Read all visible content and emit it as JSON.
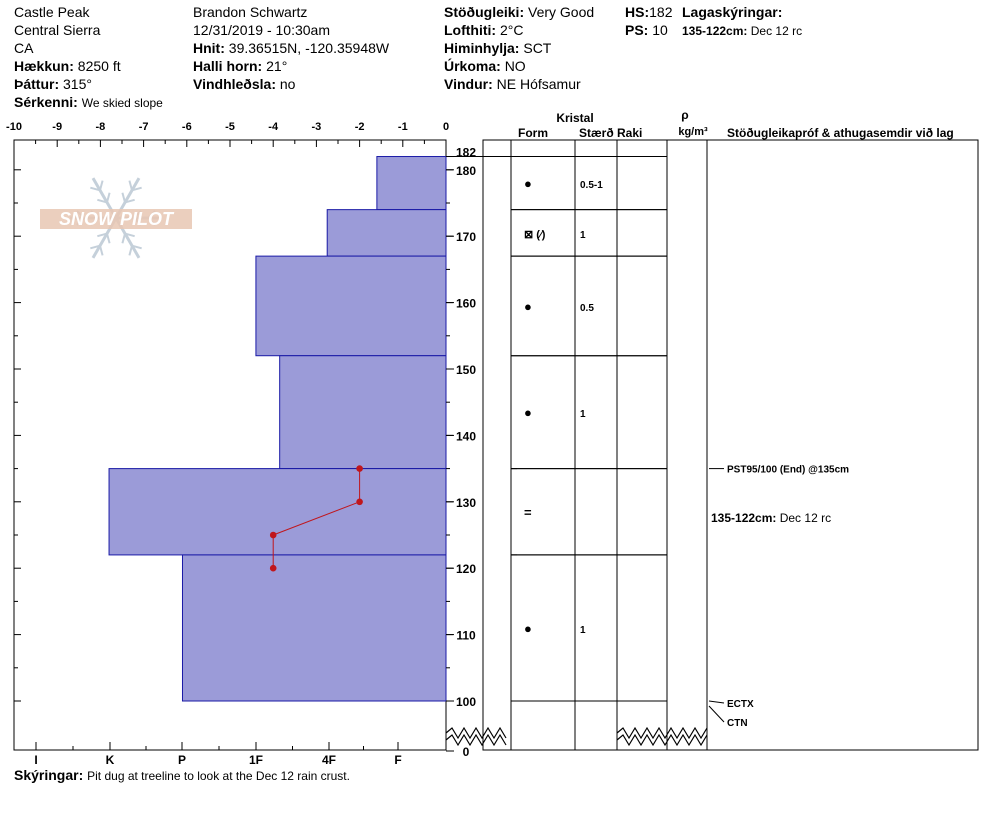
{
  "header": {
    "location": "Castle Peak",
    "range": "Central Sierra",
    "state": "CA",
    "elevation_label": "Hækkun:",
    "elevation_value": "8250 ft",
    "aspect_label": "Þáttur:",
    "aspect_value": "315°",
    "notes_label": "Sérkenni:",
    "notes_value": "We skied slope",
    "observer": "Brandon Schwartz",
    "datetime": "12/31/2019 - 10:30am",
    "coords_label": "Hnit:",
    "coords_value": "39.36515N, -120.35948W",
    "slope_label": "Halli horn:",
    "slope_value": "21°",
    "wind_loading_label": "Vindhleðsla:",
    "wind_loading_value": "no",
    "stability_label": "Stöðugleiki:",
    "stability_value": "Very Good",
    "air_temp_label": "Lofthiti:",
    "air_temp_value": "2°C",
    "sky_label": "Himinhylja:",
    "sky_value": "SCT",
    "precip_label": "Úrkoma:",
    "precip_value": "NO",
    "wind_label": "Vindur:",
    "wind_value": "NE Hófsamur",
    "hs_label": "HS:",
    "hs_value": "182",
    "ps_label": "PS:",
    "ps_value": "10",
    "layers_label": "Lagaskýringar:",
    "layer_note_range": "135-122cm:",
    "layer_note_text": "Dec 12 rc"
  },
  "footer": {
    "label": "Skýringar:",
    "text": "Pit dug at treeline to look at the Dec 12 rain crust."
  },
  "logo": {
    "text": "SNOW PILOT",
    "icon": "snowflake-icon"
  },
  "chart_data": {
    "type": "bar",
    "x_top_ticks": [
      "-10",
      "-9",
      "-8",
      "-7",
      "-6",
      "-5",
      "-4",
      "-3",
      "-2",
      "-1",
      "0"
    ],
    "x_hardness_ticks": [
      "I",
      "K",
      "P",
      "1F",
      "4F",
      "F"
    ],
    "y_ticks": [
      0,
      100,
      110,
      120,
      130,
      140,
      150,
      160,
      170,
      180,
      182
    ],
    "ylim": [
      0,
      182
    ],
    "hardness_layers": [
      {
        "top": 182,
        "bottom": 174,
        "hardness": -1.6
      },
      {
        "top": 174,
        "bottom": 167,
        "hardness": -2.75
      },
      {
        "top": 167,
        "bottom": 152,
        "hardness": -4.4
      },
      {
        "top": 152,
        "bottom": 135,
        "hardness": -3.85
      },
      {
        "top": 135,
        "bottom": 122,
        "hardness": -7.8
      },
      {
        "top": 122,
        "bottom": 100,
        "hardness": -6.1
      }
    ],
    "temperature_profile": [
      {
        "depth": 135,
        "temp": -2
      },
      {
        "depth": 130,
        "temp": -2
      },
      {
        "depth": 125,
        "temp": -4
      },
      {
        "depth": 120,
        "temp": -4
      }
    ],
    "columns": {
      "crystal_header": "Kristal",
      "form": "Form",
      "size": "Stærð",
      "moisture": "Raki",
      "density_symbol": "ρ",
      "density_unit": "kg/m³",
      "tests": "Stöðugleikapróf & athugasemdir við lag"
    },
    "layer_rows": [
      {
        "top": 182,
        "bottom": 174,
        "form": "●",
        "size": "0.5-1"
      },
      {
        "top": 174,
        "bottom": 167,
        "form": "⊠ (⁄)",
        "size": "1"
      },
      {
        "top": 167,
        "bottom": 152,
        "form": "●",
        "size": "0.5"
      },
      {
        "top": 152,
        "bottom": 135,
        "form": "●",
        "size": "1"
      },
      {
        "top": 135,
        "bottom": 122,
        "form": "=",
        "size": ""
      },
      {
        "top": 122,
        "bottom": 100,
        "form": "●",
        "size": "1"
      }
    ],
    "stability_tests": [
      {
        "depth": 135,
        "label": "PST95/100 (End) @135cm"
      },
      {
        "depth": 100,
        "label": "ECTX"
      },
      {
        "depth": 100,
        "label": "CTN"
      }
    ],
    "layer_comment": {
      "label": "135-122cm:",
      "text": "Dec 12 rc"
    },
    "colors": {
      "fill": "#9b9bd8",
      "stroke": "#1a1aa6",
      "temp": "#c0161c"
    }
  }
}
